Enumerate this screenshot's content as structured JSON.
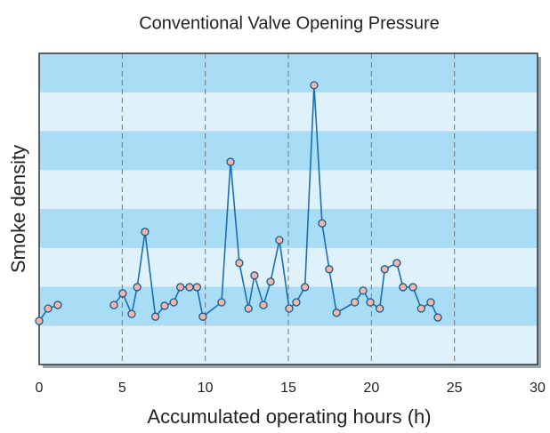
{
  "chart_data": {
    "type": "line",
    "title": "Conventional Valve Opening Pressure",
    "x_label": "Accumulated operating hours (h)",
    "y_label": "Smoke density",
    "xlim": [
      0,
      30
    ],
    "xticks": [
      0,
      5,
      10,
      15,
      20,
      25,
      30
    ],
    "ylim": [
      0,
      8
    ],
    "grid": true,
    "series": [
      {
        "name": "Smoke density",
        "color": "#1a6fb0",
        "marker_color": "#f4b6a8",
        "x": [
          0,
          0.54,
          1.12,
          null,
          4.5,
          5.03,
          5.57,
          5.9,
          6.37,
          7.0,
          7.55,
          8.1,
          8.5,
          9.05,
          9.5,
          9.85,
          10.98,
          11.52,
          12.05,
          12.6,
          12.96,
          13.5,
          13.93,
          14.46,
          15.05,
          15.48,
          16.0,
          16.55,
          17.03,
          17.46,
          17.9,
          19.0,
          19.5,
          19.93,
          20.5,
          20.8,
          21.53,
          21.9,
          22.5,
          23.0,
          23.57,
          24.0
        ],
        "values": [
          1.12,
          1.44,
          1.53,
          null,
          1.53,
          1.83,
          1.3,
          1.99,
          3.41,
          1.23,
          1.51,
          1.6,
          1.99,
          1.99,
          1.99,
          1.23,
          1.6,
          5.21,
          2.61,
          1.44,
          2.29,
          1.53,
          2.13,
          3.2,
          1.44,
          1.6,
          1.99,
          7.18,
          3.63,
          2.45,
          1.33,
          1.6,
          1.9,
          1.6,
          1.44,
          2.45,
          2.61,
          1.99,
          1.99,
          1.44,
          1.6,
          1.21
        ]
      }
    ]
  }
}
